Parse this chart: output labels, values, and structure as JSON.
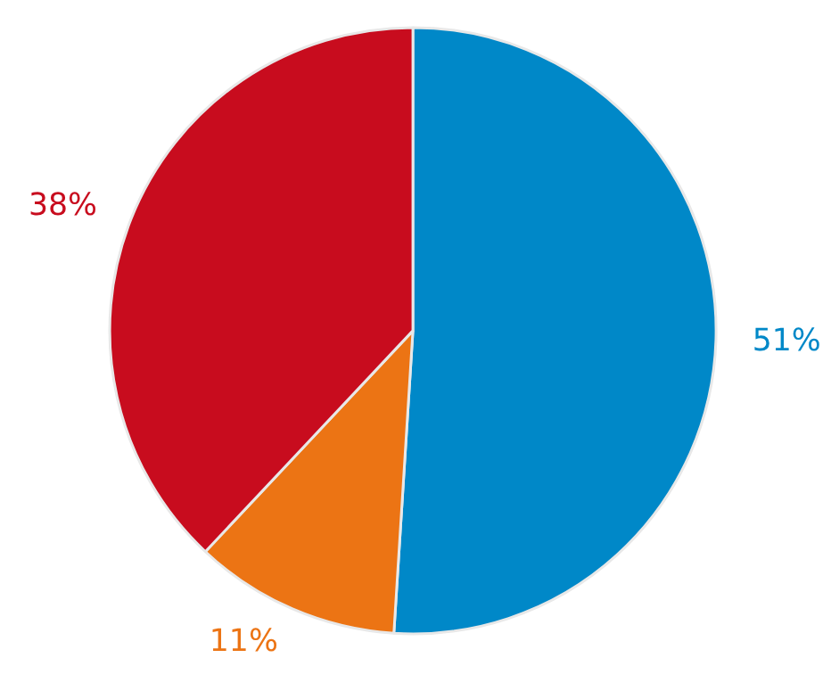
{
  "chart_data": {
    "type": "pie",
    "categories": [
      null,
      null,
      null
    ],
    "values": [
      51,
      11,
      38
    ],
    "colors": [
      "#0088c8",
      "#ec7414",
      "#c80c1e"
    ],
    "value_labels": [
      "51%",
      "11%",
      "38%"
    ]
  }
}
